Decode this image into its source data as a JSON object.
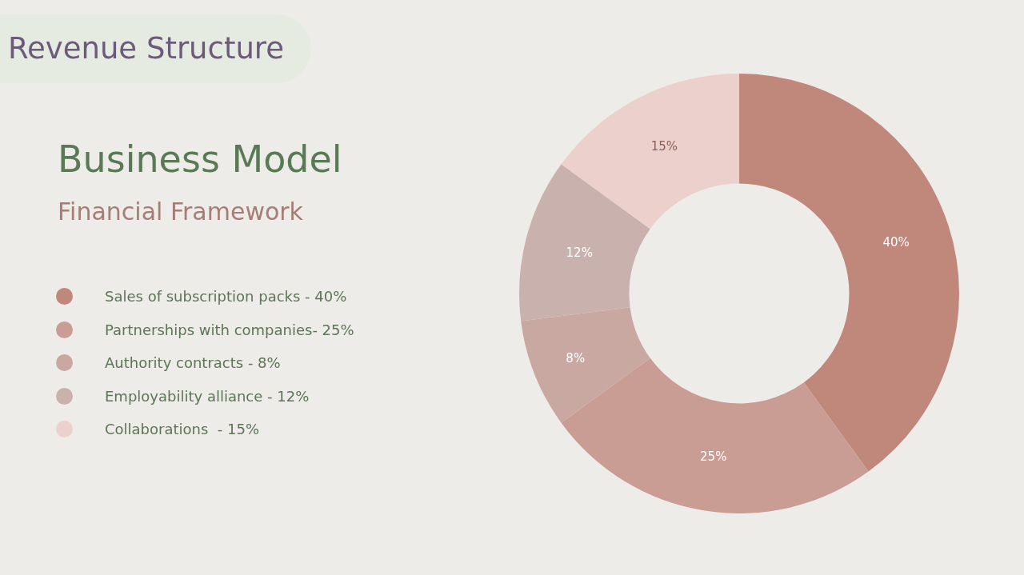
{
  "chart_data": {
    "type": "donut",
    "title": "Business Model",
    "subtitle": "Financial Framework",
    "annotations": [
      "Revenue Structure"
    ],
    "categories": [
      "Sales of subscription packs - 40%",
      "Partnerships with companies- 25%",
      "Authority contracts - 8%",
      "Employability alliance - 12%",
      "Collaborations  - 15%"
    ],
    "values": [
      40,
      25,
      8,
      12,
      15
    ],
    "colors": [
      "#c0877b",
      "#c99c94",
      "#c9a8a2",
      "#c9b2ad",
      "#ecd0cc"
    ],
    "value_labels": [
      "40%",
      "25%",
      "8%",
      "12%",
      "15%"
    ],
    "legend": "left"
  }
}
